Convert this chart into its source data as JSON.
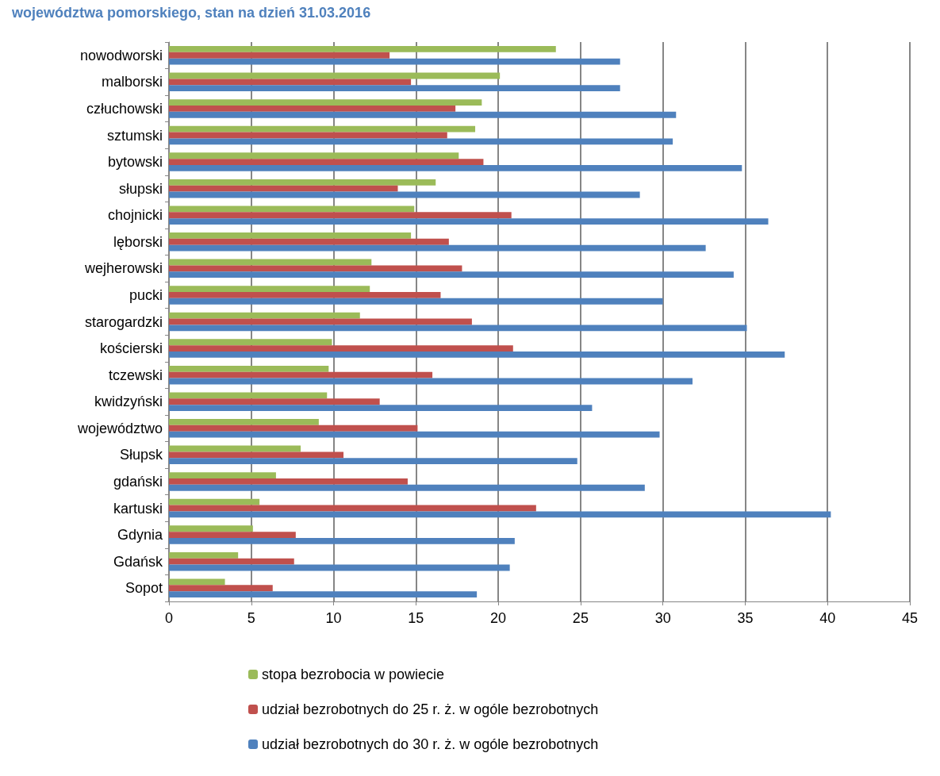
{
  "chart_data": {
    "type": "bar",
    "orientation": "horizontal",
    "title": "województwa pomorskiego, stan na dzień 31.03.2016",
    "categories": [
      "nowodworski",
      "malborski",
      "człuchowski",
      "sztumski",
      "bytowski",
      "słupski",
      "chojnicki",
      "lęborski",
      "wejherowski",
      "pucki",
      "starogardzki",
      "kościerski",
      "tczewski",
      "kwidzyński",
      "województwo",
      "Słupsk",
      "gdański",
      "kartuski",
      "Gdynia",
      "Gdańsk",
      "Sopot"
    ],
    "series": [
      {
        "name": "stopa bezrobocia w powiecie",
        "color": "#9bbb59",
        "values": [
          23.5,
          20.1,
          19.0,
          18.6,
          17.6,
          16.2,
          14.9,
          14.7,
          12.3,
          12.2,
          11.6,
          9.9,
          9.7,
          9.6,
          9.1,
          8.0,
          6.5,
          5.5,
          5.1,
          4.2,
          3.4
        ]
      },
      {
        "name": "udział bezrobotnych do 25 r. ż. w ogóle bezrobotnych",
        "color": "#c0504d",
        "values": [
          13.4,
          14.7,
          17.4,
          16.9,
          19.1,
          13.9,
          20.8,
          17.0,
          17.8,
          16.5,
          18.4,
          20.9,
          16.0,
          12.8,
          15.1,
          10.6,
          14.5,
          22.3,
          7.7,
          7.6,
          6.3
        ]
      },
      {
        "name": "udział bezrobotnych do 30 r. ż. w ogóle bezrobotnych",
        "color": "#4f81bd",
        "values": [
          27.4,
          27.4,
          30.8,
          30.6,
          34.8,
          28.6,
          36.4,
          32.6,
          34.3,
          30.0,
          35.1,
          37.4,
          31.8,
          25.7,
          29.8,
          24.8,
          28.9,
          40.2,
          21.0,
          20.7,
          18.7
        ]
      }
    ],
    "xlim": [
      0,
      45
    ],
    "xticks": [
      0,
      5,
      10,
      15,
      20,
      25,
      30,
      35,
      40,
      45
    ],
    "grid": "x",
    "legend": "bottom"
  }
}
